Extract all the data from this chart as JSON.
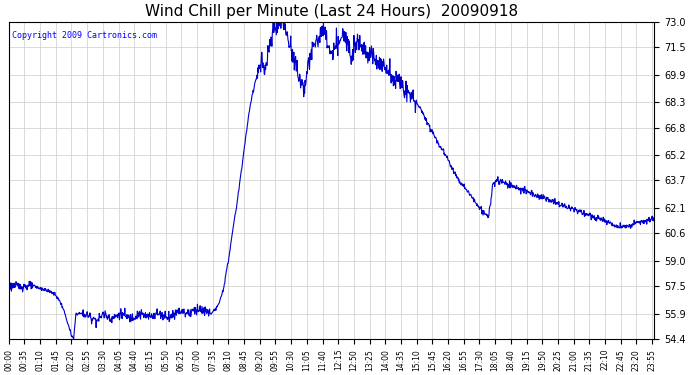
{
  "title": "Wind Chill per Minute (Last 24 Hours)  20090918",
  "copyright": "Copyright 2009 Cartronics.com",
  "line_color": "#0000cc",
  "background_color": "#ffffff",
  "grid_color": "#cccccc",
  "ylim": [
    54.4,
    73.0
  ],
  "yticks": [
    54.4,
    55.9,
    57.5,
    59.0,
    60.6,
    62.1,
    63.7,
    65.2,
    66.8,
    68.3,
    69.9,
    71.5,
    73.0
  ],
  "xtick_labels": [
    "00:00",
    "00:35",
    "01:10",
    "01:45",
    "02:20",
    "02:55",
    "03:30",
    "04:05",
    "04:40",
    "05:15",
    "05:50",
    "06:25",
    "07:00",
    "07:35",
    "08:10",
    "08:45",
    "09:20",
    "09:55",
    "10:30",
    "11:05",
    "11:40",
    "12:15",
    "12:50",
    "13:25",
    "14:00",
    "14:35",
    "15:10",
    "15:45",
    "16:20",
    "16:55",
    "17:30",
    "18:05",
    "18:40",
    "19:15",
    "19:50",
    "20:25",
    "21:00",
    "21:35",
    "22:10",
    "22:45",
    "23:20",
    "23:55"
  ],
  "n_minutes": 1440,
  "keypoints": [
    [
      0,
      57.5
    ],
    [
      55,
      57.5
    ],
    [
      80,
      57.3
    ],
    [
      100,
      57.1
    ],
    [
      110,
      56.8
    ],
    [
      120,
      56.3
    ],
    [
      130,
      55.5
    ],
    [
      140,
      54.6
    ],
    [
      145,
      54.4
    ],
    [
      150,
      55.9
    ],
    [
      165,
      55.9
    ],
    [
      200,
      55.5
    ],
    [
      210,
      55.9
    ],
    [
      230,
      55.6
    ],
    [
      250,
      55.9
    ],
    [
      270,
      55.6
    ],
    [
      290,
      55.9
    ],
    [
      310,
      55.7
    ],
    [
      330,
      55.9
    ],
    [
      360,
      55.7
    ],
    [
      380,
      56.1
    ],
    [
      400,
      55.9
    ],
    [
      420,
      56.2
    ],
    [
      440,
      56.0
    ],
    [
      450,
      55.9
    ],
    [
      460,
      56.1
    ],
    [
      470,
      56.5
    ],
    [
      480,
      57.5
    ],
    [
      490,
      59.0
    ],
    [
      500,
      60.8
    ],
    [
      510,
      62.5
    ],
    [
      520,
      64.5
    ],
    [
      530,
      66.5
    ],
    [
      540,
      68.3
    ],
    [
      550,
      69.5
    ],
    [
      555,
      69.9
    ],
    [
      560,
      70.3
    ],
    [
      565,
      70.8
    ],
    [
      570,
      69.9
    ],
    [
      575,
      70.3
    ],
    [
      580,
      71.5
    ],
    [
      590,
      72.3
    ],
    [
      600,
      72.8
    ],
    [
      610,
      73.0
    ],
    [
      615,
      72.8
    ],
    [
      620,
      72.2
    ],
    [
      630,
      71.5
    ],
    [
      640,
      70.5
    ],
    [
      650,
      69.5
    ],
    [
      660,
      69.2
    ],
    [
      665,
      69.9
    ],
    [
      670,
      70.5
    ],
    [
      675,
      71.2
    ],
    [
      680,
      71.5
    ],
    [
      685,
      71.8
    ],
    [
      690,
      72.0
    ],
    [
      695,
      72.3
    ],
    [
      700,
      72.5
    ],
    [
      705,
      72.3
    ],
    [
      710,
      71.8
    ],
    [
      715,
      71.5
    ],
    [
      720,
      71.0
    ],
    [
      725,
      71.2
    ],
    [
      730,
      71.5
    ],
    [
      735,
      71.8
    ],
    [
      740,
      72.0
    ],
    [
      745,
      72.2
    ],
    [
      750,
      72.0
    ],
    [
      755,
      71.8
    ],
    [
      760,
      71.5
    ],
    [
      765,
      71.3
    ],
    [
      770,
      71.5
    ],
    [
      775,
      71.8
    ],
    [
      780,
      72.0
    ],
    [
      785,
      71.8
    ],
    [
      790,
      71.5
    ],
    [
      800,
      71.2
    ],
    [
      810,
      71.0
    ],
    [
      820,
      70.8
    ],
    [
      830,
      70.5
    ],
    [
      840,
      70.3
    ],
    [
      850,
      70.0
    ],
    [
      860,
      69.7
    ],
    [
      870,
      69.5
    ],
    [
      880,
      69.2
    ],
    [
      890,
      68.8
    ],
    [
      900,
      68.5
    ],
    [
      910,
      68.3
    ],
    [
      920,
      67.8
    ],
    [
      930,
      67.3
    ],
    [
      940,
      66.8
    ],
    [
      950,
      66.3
    ],
    [
      960,
      65.8
    ],
    [
      970,
      65.4
    ],
    [
      980,
      64.9
    ],
    [
      990,
      64.4
    ],
    [
      1000,
      63.9
    ],
    [
      1010,
      63.5
    ],
    [
      1020,
      63.2
    ],
    [
      1030,
      62.8
    ],
    [
      1040,
      62.5
    ],
    [
      1050,
      62.1
    ],
    [
      1060,
      61.8
    ],
    [
      1070,
      61.5
    ],
    [
      1080,
      63.5
    ],
    [
      1090,
      63.7
    ],
    [
      1100,
      63.6
    ],
    [
      1110,
      63.5
    ],
    [
      1120,
      63.4
    ],
    [
      1130,
      63.3
    ],
    [
      1140,
      63.2
    ],
    [
      1160,
      63.0
    ],
    [
      1180,
      62.8
    ],
    [
      1200,
      62.6
    ],
    [
      1220,
      62.4
    ],
    [
      1240,
      62.2
    ],
    [
      1260,
      62.0
    ],
    [
      1280,
      61.8
    ],
    [
      1300,
      61.6
    ],
    [
      1320,
      61.4
    ],
    [
      1340,
      61.2
    ],
    [
      1360,
      61.0
    ],
    [
      1380,
      61.0
    ],
    [
      1400,
      61.2
    ],
    [
      1420,
      61.3
    ],
    [
      1435,
      61.4
    ]
  ]
}
